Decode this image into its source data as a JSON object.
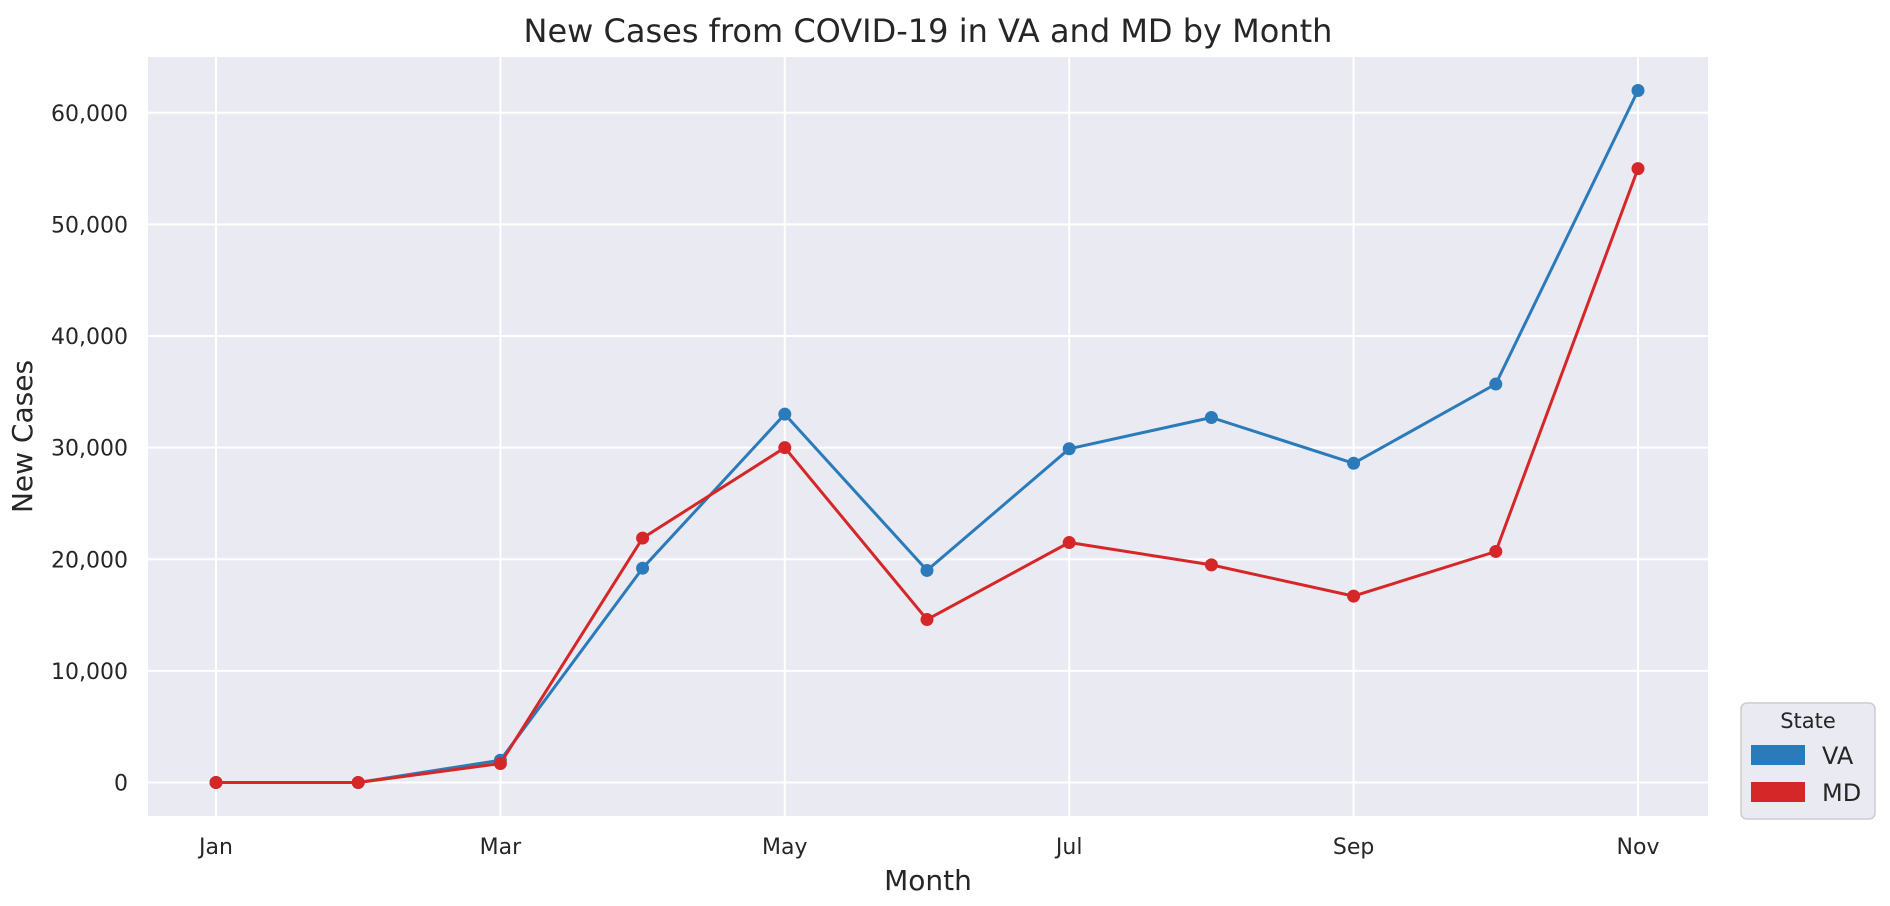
{
  "chart_data": {
    "type": "line",
    "title": "New Cases from COVID-19 in VA and MD by Month",
    "xlabel": "Month",
    "ylabel": "New Cases",
    "x": [
      "Jan",
      "Feb",
      "Mar",
      "Apr",
      "May",
      "Jun",
      "Jul",
      "Aug",
      "Sep",
      "Oct",
      "Nov"
    ],
    "xticks": [
      "Jan",
      "Mar",
      "May",
      "Jul",
      "Sep",
      "Nov"
    ],
    "yticks": [
      0,
      10000,
      20000,
      30000,
      40000,
      50000,
      60000
    ],
    "yticklabels": [
      "0",
      "10,000",
      "20,000",
      "30,000",
      "40,000",
      "50,000",
      "60,000"
    ],
    "ylim": [
      -3000,
      65000
    ],
    "grid": true,
    "background": "#eaeaf2",
    "legend": {
      "title": "State",
      "placement": "lower-right, outside plot area"
    },
    "series": [
      {
        "name": "VA",
        "color": "#2b7bba",
        "values": [
          0,
          0,
          2000,
          19200,
          33000,
          19000,
          29900,
          32700,
          28600,
          35700,
          62000
        ]
      },
      {
        "name": "MD",
        "color": "#d62728",
        "values": [
          0,
          0,
          1700,
          21900,
          30000,
          14600,
          21500,
          19500,
          16700,
          20700,
          55000
        ]
      }
    ]
  }
}
